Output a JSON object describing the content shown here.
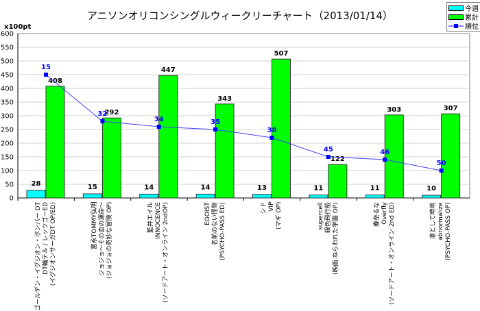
{
  "chart_data": {
    "type": "bar",
    "title": "アニソンオリコンシングルウィークリーチャート（2013/01/14）",
    "ylabel": "x100pt",
    "ylim": [
      0,
      600
    ],
    "yticks": [
      0,
      50,
      100,
      150,
      200,
      250,
      300,
      350,
      400,
      450,
      500,
      550,
      600
    ],
    "grid": true,
    "legend": "top-right",
    "categories": [
      "ゴールデン・イグジオン・ボンバー DT\nDT輪テル / レッツゴーED\n(イグジオンサーガDT OP/ED)",
      "富永TOMMY弘明\nジョジョ〜その血の運命〜\n(ジョジョの奇妙な冒険 OP)",
      "藍井エイル\nINNOCENCE\n(ソードアート・オンライン 2ndOP)",
      "EGOIST\n名前のない怪物\n(PSYCHO-PASS ED)",
      "シド\nVIP\n(マギ OP)",
      "supercell\n銀色飛行船\n(映画 ねらわれた学園 OP)",
      "春奈るな\nOverfly\n(ソードアート・オンライン 2nd ED)",
      "凛として時雨\nabnormalize\n(PSYCHO-PASS OP)"
    ],
    "series": [
      {
        "name": "今週",
        "type": "bar",
        "color": "#00ffff",
        "values": [
          28,
          15,
          14,
          14,
          13,
          11,
          11,
          10
        ]
      },
      {
        "name": "累計",
        "type": "bar",
        "color": "#00ff00",
        "values": [
          408,
          292,
          447,
          343,
          507,
          122,
          303,
          307
        ]
      },
      {
        "name": "順位",
        "type": "line",
        "color": "#0000ff",
        "labels": [
          15,
          32,
          34,
          35,
          38,
          45,
          46,
          50
        ],
        "values": [
          450,
          280,
          260,
          250,
          220,
          150,
          140,
          100
        ]
      }
    ]
  }
}
